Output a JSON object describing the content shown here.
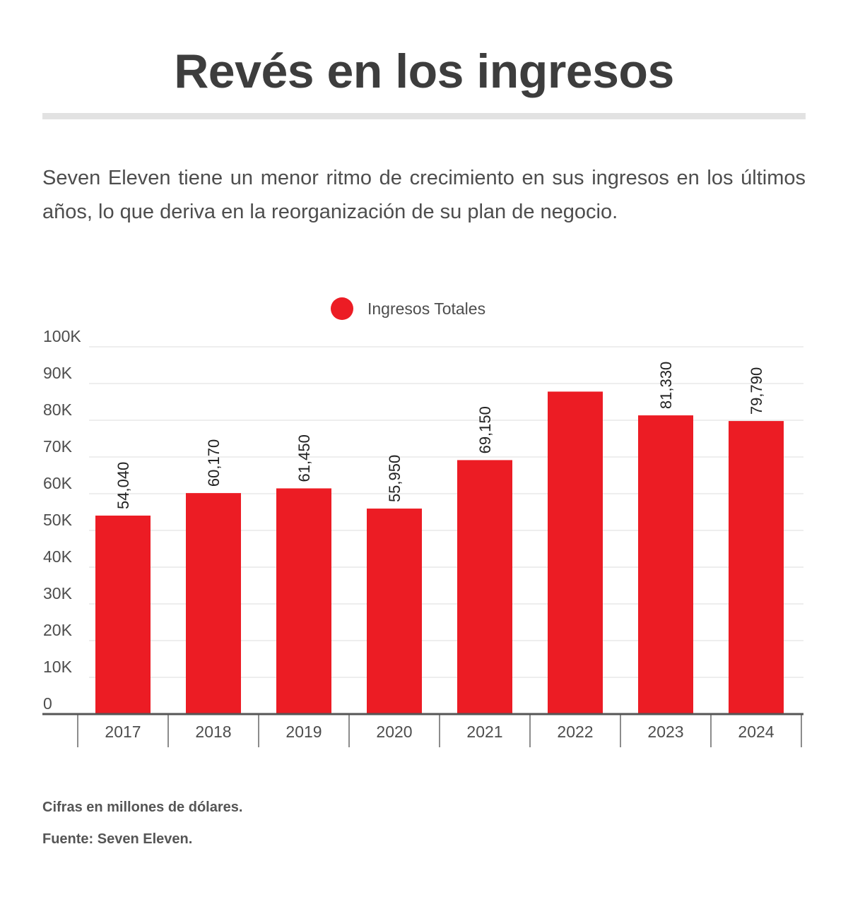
{
  "title": "Revés en los ingresos",
  "subtitle": "Seven Eleven tiene un menor ritmo de crecimiento en sus ingresos en los últimos años, lo que deriva en la reorganización de su plan de negocio.",
  "footnotes": {
    "units": "Cifras en millones de dólares.",
    "source": "Fuente: Seven Eleven."
  },
  "colors": {
    "bar": "#ec1c24",
    "grid": "#dcdcdc",
    "axis": "#555555",
    "text": "#4d4d4d"
  },
  "chart_data": {
    "type": "bar",
    "categories": [
      "2017",
      "2018",
      "2019",
      "2020",
      "2021",
      "2022",
      "2023",
      "2024"
    ],
    "series": [
      {
        "name": "Ingresos Totales",
        "values": [
          54040,
          60170,
          61450,
          55950,
          69150,
          87800,
          81330,
          79790
        ],
        "data_labels": [
          "54,040",
          "60,170",
          "61,450",
          "55,950",
          "69,150",
          "",
          "81,330",
          "79,790"
        ]
      }
    ],
    "ylim": [
      0,
      100000
    ],
    "yticks": [
      0,
      10000,
      20000,
      30000,
      40000,
      50000,
      60000,
      70000,
      80000,
      90000,
      100000
    ],
    "ytick_labels": [
      "0",
      "10K",
      "20K",
      "30K",
      "40K",
      "50K",
      "60K",
      "70K",
      "80K",
      "90K",
      "100K"
    ],
    "grid": true,
    "legend_position": "top-center"
  }
}
